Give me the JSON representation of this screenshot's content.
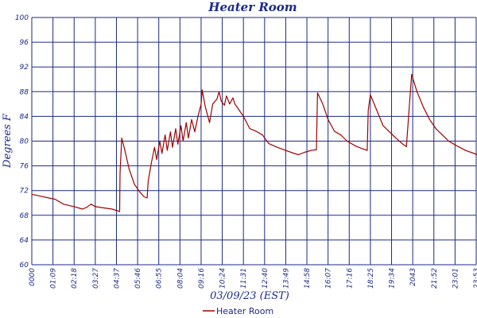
{
  "chart_data": {
    "type": "line",
    "title": "Heater Room",
    "xlabel": "03/09/23 (EST)",
    "ylabel": "Degrees F",
    "ylim": [
      60,
      100
    ],
    "y_ticks": [
      "60",
      "64",
      "68",
      "72",
      "76",
      "80",
      "84",
      "88",
      "92",
      "96",
      "100"
    ],
    "x_ticks": [
      "0000",
      "01:09",
      "02:18",
      "03:27",
      "04:37",
      "05:46",
      "06:55",
      "08:04",
      "09:16",
      "10:24",
      "11:31",
      "12:40",
      "13:49",
      "14:58",
      "16:07",
      "17:16",
      "18:25",
      "19:34",
      "2043",
      "21:52",
      "23:01",
      "23:53"
    ],
    "grid": true,
    "legend_position": "bottom-center",
    "colors": {
      "series": "#a00000",
      "grid": "#1a2a8a",
      "text": "#1a2a8a"
    },
    "series": [
      {
        "name": "Heater Room",
        "points": [
          [
            0.0,
            71.4
          ],
          [
            0.4,
            71.1
          ],
          [
            0.8,
            70.8
          ],
          [
            1.1,
            70.6
          ],
          [
            1.5,
            69.8
          ],
          [
            2.0,
            69.4
          ],
          [
            2.4,
            69.0
          ],
          [
            2.6,
            69.3
          ],
          [
            2.8,
            69.8
          ],
          [
            3.0,
            69.4
          ],
          [
            3.4,
            69.2
          ],
          [
            3.8,
            69.0
          ],
          [
            4.15,
            68.6
          ],
          [
            4.17,
            74.8
          ],
          [
            4.25,
            80.5
          ],
          [
            4.4,
            78.5
          ],
          [
            4.6,
            75.5
          ],
          [
            4.85,
            73.0
          ],
          [
            5.1,
            71.8
          ],
          [
            5.3,
            71.0
          ],
          [
            5.45,
            70.8
          ],
          [
            5.5,
            73.5
          ],
          [
            5.65,
            76.5
          ],
          [
            5.8,
            79.0
          ],
          [
            5.9,
            77.0
          ],
          [
            6.05,
            80.0
          ],
          [
            6.15,
            78.0
          ],
          [
            6.3,
            81.0
          ],
          [
            6.4,
            78.5
          ],
          [
            6.55,
            81.5
          ],
          [
            6.65,
            79.0
          ],
          [
            6.8,
            82.0
          ],
          [
            6.9,
            79.5
          ],
          [
            7.05,
            82.5
          ],
          [
            7.15,
            80.0
          ],
          [
            7.3,
            83.0
          ],
          [
            7.4,
            80.5
          ],
          [
            7.55,
            83.5
          ],
          [
            7.7,
            81.5
          ],
          [
            7.85,
            84.0
          ],
          [
            8.0,
            86.0
          ],
          [
            8.05,
            88.3
          ],
          [
            8.2,
            85.5
          ],
          [
            8.4,
            83.0
          ],
          [
            8.55,
            86.0
          ],
          [
            8.75,
            86.8
          ],
          [
            8.85,
            88.0
          ],
          [
            8.95,
            86.5
          ],
          [
            9.1,
            85.8
          ],
          [
            9.2,
            87.3
          ],
          [
            9.35,
            86.0
          ],
          [
            9.5,
            87.0
          ],
          [
            9.6,
            86.0
          ],
          [
            9.8,
            85.0
          ],
          [
            10.0,
            84.0
          ],
          [
            10.3,
            82.0
          ],
          [
            10.6,
            81.6
          ],
          [
            10.9,
            81.0
          ],
          [
            11.2,
            79.6
          ],
          [
            11.6,
            79.0
          ],
          [
            12.0,
            78.5
          ],
          [
            12.4,
            78.0
          ],
          [
            12.6,
            77.8
          ],
          [
            12.9,
            78.2
          ],
          [
            13.2,
            78.5
          ],
          [
            13.45,
            78.6
          ],
          [
            13.5,
            87.8
          ],
          [
            13.75,
            86.0
          ],
          [
            14.0,
            83.5
          ],
          [
            14.3,
            81.6
          ],
          [
            14.6,
            81.0
          ],
          [
            14.9,
            80.0
          ],
          [
            15.3,
            79.2
          ],
          [
            15.6,
            78.8
          ],
          [
            15.85,
            78.5
          ],
          [
            15.9,
            85.0
          ],
          [
            16.0,
            87.5
          ],
          [
            16.3,
            85.0
          ],
          [
            16.6,
            82.5
          ],
          [
            16.9,
            81.5
          ],
          [
            17.2,
            80.5
          ],
          [
            17.5,
            79.6
          ],
          [
            17.7,
            79.1
          ],
          [
            17.95,
            90.8
          ],
          [
            18.2,
            88.0
          ],
          [
            18.5,
            85.5
          ],
          [
            18.8,
            83.5
          ],
          [
            19.1,
            82.0
          ],
          [
            19.4,
            81.0
          ],
          [
            19.7,
            80.0
          ],
          [
            20.1,
            79.2
          ],
          [
            20.5,
            78.5
          ],
          [
            20.9,
            78.0
          ],
          [
            21.3,
            77.5
          ],
          [
            21.7,
            76.8
          ],
          [
            22.1,
            76.3
          ],
          [
            22.5,
            75.8
          ],
          [
            22.9,
            75.4
          ],
          [
            23.3,
            75.1
          ],
          [
            23.53,
            75.0
          ]
        ]
      }
    ]
  }
}
